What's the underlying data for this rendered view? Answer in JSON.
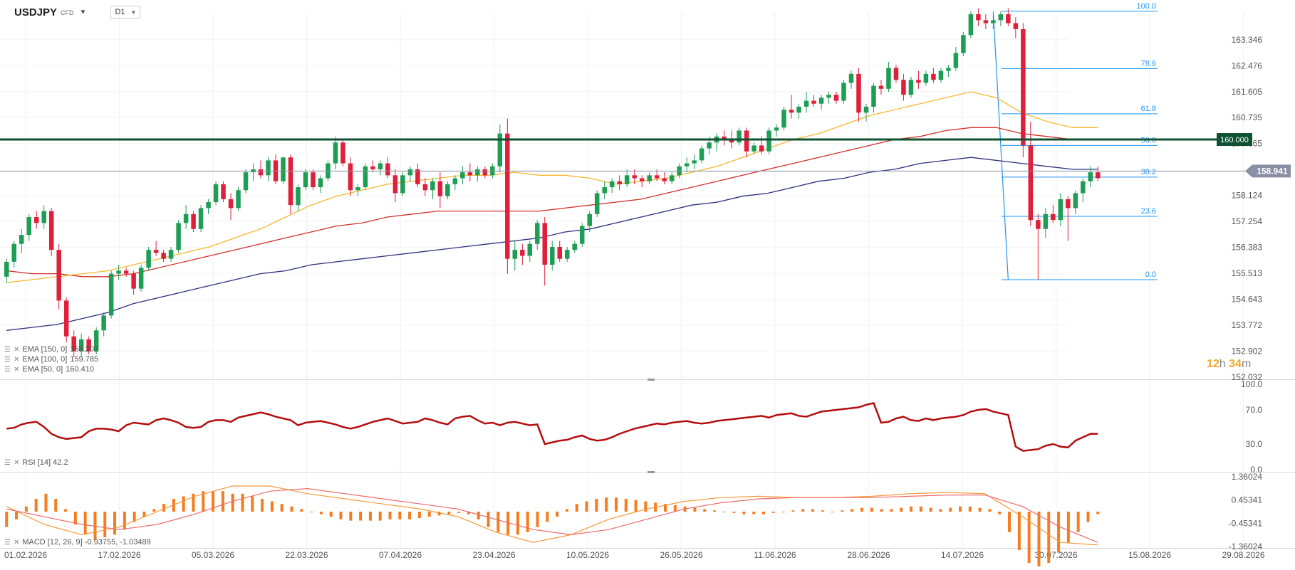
{
  "header": {
    "symbol": "USDJPY",
    "instrument_type": "CFD",
    "timeframe": "D1"
  },
  "indicators": {
    "ema150_label": "EMA [150, 0]",
    "ema150_value": "158.202",
    "ema100_label": "EMA [100, 0]",
    "ema100_value": "159.785",
    "ema50_label": "EMA [50, 0]",
    "ema50_value": "160.410",
    "rsi_label": "RSI [14] 42.2",
    "macd_label": "MACD [12, 26, 9] -0.93755, -1.03489"
  },
  "countdown": {
    "hours": "12",
    "h_unit": "h",
    "minutes": "34",
    "m_unit": "m"
  },
  "colors": {
    "bull": "#1e9e55",
    "bear": "#e0203a",
    "ema50": "#f7b731",
    "ema100": "#d0312d",
    "ema150": "#2b2f7d",
    "rsi": "#b40d0d",
    "fib": "#2196f3",
    "level": "#0f5132",
    "macd_hist": "#f57c1f",
    "macd_line": "#f49a3a",
    "signal_line": "#f06a6a",
    "axis_text": "#555555"
  },
  "chart_data": {
    "type": "candlestick",
    "price_axis": {
      "min": 152.032,
      "max": 164.2,
      "ticks": [
        "163.346",
        "162.476",
        "161.605",
        "160.735",
        "159.865",
        "159.001",
        "158.124",
        "157.254",
        "156.383",
        "155.513",
        "154.643",
        "153.772",
        "152.902",
        "152.032"
      ]
    },
    "x_axis_labels": [
      "01.02.2026",
      "17.02.2026",
      "05.03.2026",
      "22.03.2026",
      "07.04.2026",
      "23.04.2026",
      "10.05.2026",
      "26.05.2026",
      "11.06.2026",
      "28.06.2026",
      "14.07.2026",
      "30.07.2026",
      "15.08.2026",
      "29.08.2026"
    ],
    "current_price": "158.941",
    "level_line": {
      "value": 160.0,
      "label": "160.000"
    },
    "fibonacci": {
      "high": 164.3,
      "low": 155.3,
      "levels": [
        {
          "ratio": 1.0,
          "label": "100.0"
        },
        {
          "ratio": 0.786,
          "label": "78.6"
        },
        {
          "ratio": 0.618,
          "label": "61.8"
        },
        {
          "ratio": 0.5,
          "label": "50.0"
        },
        {
          "ratio": 0.382,
          "label": "38.2"
        },
        {
          "ratio": 0.236,
          "label": "23.6"
        },
        {
          "ratio": 0.0,
          "label": "0.0"
        }
      ]
    },
    "ohlc": [
      [
        155.4,
        156.0,
        155.2,
        155.9
      ],
      [
        155.9,
        156.6,
        155.7,
        156.5
      ],
      [
        156.5,
        157.0,
        156.2,
        156.8
      ],
      [
        156.8,
        157.5,
        156.6,
        157.4
      ],
      [
        157.4,
        157.6,
        157.0,
        157.2
      ],
      [
        157.2,
        157.8,
        157.0,
        157.6
      ],
      [
        157.6,
        157.7,
        156.1,
        156.3
      ],
      [
        156.3,
        156.5,
        154.3,
        154.6
      ],
      [
        154.6,
        154.7,
        153.2,
        153.4
      ],
      [
        153.4,
        153.6,
        152.7,
        152.9
      ],
      [
        152.9,
        153.5,
        152.7,
        153.3
      ],
      [
        153.3,
        153.4,
        152.8,
        152.9
      ],
      [
        152.9,
        153.7,
        152.8,
        153.6
      ],
      [
        153.6,
        154.2,
        153.4,
        154.1
      ],
      [
        154.1,
        155.6,
        154.0,
        155.5
      ],
      [
        155.5,
        155.8,
        155.3,
        155.6
      ],
      [
        155.6,
        155.7,
        155.4,
        155.5
      ],
      [
        155.5,
        155.6,
        154.8,
        155.0
      ],
      [
        155.0,
        155.8,
        154.9,
        155.7
      ],
      [
        155.7,
        156.4,
        155.6,
        156.3
      ],
      [
        156.3,
        156.6,
        156.1,
        156.2
      ],
      [
        156.2,
        156.3,
        155.9,
        156.0
      ],
      [
        156.0,
        156.4,
        155.9,
        156.3
      ],
      [
        156.3,
        157.3,
        156.2,
        157.2
      ],
      [
        157.2,
        157.8,
        157.0,
        157.5
      ],
      [
        157.5,
        157.6,
        156.9,
        157.0
      ],
      [
        157.0,
        157.8,
        156.9,
        157.7
      ],
      [
        157.7,
        158.0,
        157.5,
        157.9
      ],
      [
        157.9,
        158.6,
        157.8,
        158.5
      ],
      [
        158.5,
        158.6,
        157.9,
        158.0
      ],
      [
        158.0,
        158.2,
        157.3,
        157.7
      ],
      [
        157.7,
        158.4,
        157.6,
        158.3
      ],
      [
        158.3,
        159.0,
        158.2,
        158.9
      ],
      [
        158.9,
        159.2,
        158.6,
        159.0
      ],
      [
        159.0,
        159.3,
        158.7,
        158.8
      ],
      [
        158.8,
        159.4,
        158.6,
        159.3
      ],
      [
        159.3,
        159.5,
        158.5,
        158.6
      ],
      [
        158.6,
        159.4,
        158.5,
        159.4
      ],
      [
        159.4,
        159.5,
        157.5,
        157.8
      ],
      [
        157.8,
        158.5,
        157.6,
        158.4
      ],
      [
        158.4,
        159.0,
        158.3,
        158.9
      ],
      [
        158.9,
        159.0,
        158.3,
        158.4
      ],
      [
        158.4,
        158.8,
        158.2,
        158.7
      ],
      [
        158.7,
        159.3,
        158.6,
        159.2
      ],
      [
        159.2,
        160.1,
        159.0,
        159.9
      ],
      [
        159.9,
        160.0,
        159.1,
        159.2
      ],
      [
        159.2,
        159.4,
        158.1,
        158.3
      ],
      [
        158.3,
        158.5,
        158.1,
        158.4
      ],
      [
        158.4,
        159.2,
        158.3,
        159.1
      ],
      [
        159.1,
        159.3,
        158.9,
        159.0
      ],
      [
        159.0,
        159.3,
        158.8,
        159.2
      ],
      [
        159.2,
        159.4,
        158.7,
        158.8
      ],
      [
        158.8,
        159.0,
        157.9,
        158.2
      ],
      [
        158.2,
        158.9,
        158.1,
        158.8
      ],
      [
        158.8,
        159.1,
        158.6,
        159.0
      ],
      [
        159.0,
        159.2,
        158.4,
        158.5
      ],
      [
        158.5,
        158.7,
        158.1,
        158.3
      ],
      [
        158.3,
        158.7,
        158.0,
        158.6
      ],
      [
        158.6,
        158.9,
        157.7,
        158.1
      ],
      [
        158.1,
        158.6,
        158.0,
        158.5
      ],
      [
        158.5,
        158.8,
        158.3,
        158.7
      ],
      [
        158.7,
        159.1,
        158.5,
        158.9
      ],
      [
        158.9,
        159.2,
        158.6,
        158.8
      ],
      [
        158.8,
        159.1,
        158.6,
        159.0
      ],
      [
        159.0,
        159.1,
        158.7,
        158.8
      ],
      [
        158.8,
        159.2,
        158.7,
        159.1
      ],
      [
        159.1,
        160.5,
        158.9,
        160.2
      ],
      [
        160.2,
        160.7,
        155.5,
        156.0
      ],
      [
        156.0,
        156.6,
        155.6,
        156.3
      ],
      [
        156.3,
        156.5,
        155.8,
        156.1
      ],
      [
        156.1,
        156.6,
        155.9,
        156.5
      ],
      [
        156.5,
        157.3,
        156.3,
        157.2
      ],
      [
        157.2,
        157.4,
        155.1,
        155.8
      ],
      [
        155.8,
        156.6,
        155.6,
        156.4
      ],
      [
        156.4,
        156.6,
        155.9,
        156.0
      ],
      [
        156.0,
        156.4,
        155.9,
        156.3
      ],
      [
        156.3,
        156.6,
        156.2,
        156.5
      ],
      [
        156.5,
        157.2,
        156.4,
        157.1
      ],
      [
        157.1,
        157.6,
        156.9,
        157.5
      ],
      [
        157.5,
        158.3,
        157.4,
        158.2
      ],
      [
        158.2,
        158.6,
        158.0,
        158.4
      ],
      [
        158.4,
        158.7,
        158.2,
        158.6
      ],
      [
        158.6,
        158.8,
        158.3,
        158.5
      ],
      [
        158.5,
        159.0,
        158.4,
        158.8
      ],
      [
        158.8,
        159.0,
        158.5,
        158.7
      ],
      [
        158.7,
        158.8,
        158.4,
        158.6
      ],
      [
        158.6,
        158.9,
        158.5,
        158.8
      ],
      [
        158.8,
        159.0,
        158.6,
        158.7
      ],
      [
        158.7,
        158.9,
        158.5,
        158.6
      ],
      [
        158.6,
        158.9,
        158.5,
        158.8
      ],
      [
        158.8,
        159.2,
        158.7,
        159.1
      ],
      [
        159.1,
        159.4,
        158.9,
        159.2
      ],
      [
        159.2,
        159.5,
        159.0,
        159.3
      ],
      [
        159.3,
        159.8,
        159.2,
        159.7
      ],
      [
        159.7,
        160.1,
        159.5,
        159.9
      ],
      [
        159.9,
        160.2,
        159.6,
        160.1
      ],
      [
        160.1,
        160.3,
        159.8,
        160.0
      ],
      [
        160.0,
        160.3,
        159.7,
        159.9
      ],
      [
        159.9,
        160.4,
        159.8,
        160.3
      ],
      [
        160.3,
        160.4,
        159.4,
        159.6
      ],
      [
        159.6,
        159.9,
        159.5,
        159.8
      ],
      [
        159.8,
        160.1,
        159.5,
        159.6
      ],
      [
        159.6,
        160.4,
        159.5,
        160.3
      ],
      [
        160.3,
        160.5,
        160.1,
        160.4
      ],
      [
        160.4,
        161.1,
        160.3,
        161.0
      ],
      [
        161.0,
        161.5,
        160.7,
        160.9
      ],
      [
        160.9,
        161.2,
        160.7,
        161.1
      ],
      [
        161.1,
        161.6,
        160.9,
        161.3
      ],
      [
        161.3,
        161.5,
        161.1,
        161.2
      ],
      [
        161.2,
        161.5,
        161.0,
        161.4
      ],
      [
        161.4,
        161.6,
        161.2,
        161.5
      ],
      [
        161.5,
        161.6,
        161.2,
        161.3
      ],
      [
        161.3,
        162.0,
        161.2,
        161.9
      ],
      [
        161.9,
        162.3,
        161.7,
        162.2
      ],
      [
        162.2,
        162.4,
        160.6,
        160.9
      ],
      [
        160.9,
        161.2,
        160.6,
        161.1
      ],
      [
        161.1,
        161.9,
        160.9,
        161.8
      ],
      [
        161.8,
        162.0,
        161.5,
        161.7
      ],
      [
        161.7,
        162.6,
        161.6,
        162.4
      ],
      [
        162.4,
        162.5,
        161.9,
        162.0
      ],
      [
        162.0,
        162.2,
        161.3,
        161.5
      ],
      [
        161.5,
        162.1,
        161.4,
        162.0
      ],
      [
        162.0,
        162.3,
        161.7,
        161.9
      ],
      [
        161.9,
        162.3,
        161.8,
        162.2
      ],
      [
        162.2,
        162.4,
        161.9,
        162.0
      ],
      [
        162.0,
        162.4,
        161.9,
        162.3
      ],
      [
        162.3,
        162.5,
        162.1,
        162.4
      ],
      [
        162.4,
        163.1,
        162.3,
        162.9
      ],
      [
        162.9,
        163.6,
        162.8,
        163.5
      ],
      [
        163.5,
        164.3,
        163.4,
        164.2
      ],
      [
        164.2,
        164.4,
        163.8,
        164.0
      ],
      [
        164.0,
        164.2,
        163.7,
        163.9
      ],
      [
        163.9,
        164.2,
        163.7,
        164.0
      ],
      [
        164.0,
        164.3,
        163.8,
        164.2
      ],
      [
        164.2,
        164.4,
        163.8,
        163.9
      ],
      [
        163.9,
        164.1,
        163.4,
        163.7
      ],
      [
        163.7,
        163.9,
        159.4,
        159.8
      ],
      [
        159.8,
        160.6,
        157.1,
        157.3
      ],
      [
        157.3,
        157.5,
        155.3,
        157.0
      ],
      [
        157.0,
        157.7,
        156.7,
        157.5
      ],
      [
        157.5,
        157.8,
        157.2,
        157.3
      ],
      [
        157.3,
        158.2,
        157.1,
        158.0
      ],
      [
        158.0,
        158.1,
        156.6,
        157.7
      ],
      [
        157.7,
        158.3,
        157.5,
        158.2
      ],
      [
        158.2,
        158.7,
        157.9,
        158.6
      ],
      [
        158.6,
        159.1,
        158.4,
        158.9
      ],
      [
        158.9,
        159.1,
        158.6,
        158.7
      ]
    ],
    "ema50": [
      155.2,
      155.3,
      155.4,
      155.5,
      155.6,
      155.8,
      156.0,
      156.2,
      156.4,
      156.7,
      157.0,
      157.4,
      157.8,
      158.1,
      158.3,
      158.5,
      158.6,
      158.7,
      158.8,
      158.8,
      158.9,
      158.8,
      158.8,
      158.7,
      158.5,
      158.6,
      158.7,
      158.9,
      159.1,
      159.4,
      159.7,
      160.0,
      160.2,
      160.5,
      160.8,
      161.0,
      161.2,
      161.4,
      161.6,
      161.4,
      160.9,
      160.6,
      160.4,
      160.4
    ],
    "ema100": [
      155.6,
      155.5,
      155.5,
      155.4,
      155.4,
      155.5,
      155.7,
      155.9,
      156.1,
      156.3,
      156.5,
      156.7,
      156.9,
      157.1,
      157.2,
      157.4,
      157.5,
      157.6,
      157.6,
      157.6,
      157.6,
      157.6,
      157.7,
      157.8,
      157.9,
      158.0,
      158.2,
      158.4,
      158.6,
      158.8,
      159.0,
      159.2,
      159.4,
      159.6,
      159.8,
      160.0,
      160.1,
      160.3,
      160.4,
      160.4,
      160.2,
      160.1,
      160.0,
      160.0
    ],
    "ema150": [
      153.6,
      153.7,
      153.8,
      154.0,
      154.2,
      154.5,
      154.7,
      154.9,
      155.1,
      155.3,
      155.5,
      155.6,
      155.8,
      155.9,
      156.0,
      156.1,
      156.2,
      156.3,
      156.4,
      156.5,
      156.6,
      156.7,
      156.9,
      157.0,
      157.2,
      157.4,
      157.6,
      157.8,
      157.9,
      158.1,
      158.2,
      158.4,
      158.6,
      158.7,
      158.9,
      159.0,
      159.2,
      159.3,
      159.4,
      159.3,
      159.2,
      159.1,
      159.0,
      159.0
    ],
    "rsi": [
      48,
      49,
      53,
      55,
      56,
      50,
      42,
      38,
      36,
      37,
      38,
      45,
      48,
      48,
      47,
      45,
      52,
      55,
      54,
      53,
      58,
      60,
      58,
      55,
      50,
      49,
      50,
      56,
      58,
      58,
      56,
      61,
      63,
      65,
      67,
      65,
      62,
      60,
      58,
      52,
      55,
      56,
      57,
      55,
      53,
      50,
      48,
      50,
      53,
      56,
      58,
      60,
      57,
      54,
      55,
      56,
      60,
      58,
      55,
      53,
      60,
      62,
      63,
      58,
      54,
      55,
      52,
      55,
      56,
      54,
      52,
      53,
      30,
      32,
      34,
      35,
      38,
      40,
      36,
      34,
      35,
      38,
      42,
      45,
      48,
      50,
      52,
      54,
      53,
      55,
      56,
      57,
      55,
      54,
      55,
      57,
      58,
      59,
      60,
      61,
      62,
      63,
      61,
      64,
      65,
      66,
      63,
      62,
      65,
      68,
      69,
      70,
      71,
      72,
      73,
      76,
      78,
      55,
      56,
      60,
      62,
      58,
      57,
      60,
      58,
      60,
      61,
      62,
      64,
      68,
      70,
      71,
      68,
      66,
      64,
      27,
      22,
      23,
      24,
      28,
      30,
      27,
      26,
      34,
      38,
      42,
      42
    ],
    "macd_hist": [
      -0.6,
      -0.3,
      0.2,
      0.5,
      0.7,
      0.5,
      0.1,
      -0.5,
      -0.9,
      -1.1,
      -1.0,
      -0.9,
      -0.7,
      -0.4,
      -0.2,
      0.1,
      0.3,
      0.5,
      0.6,
      0.7,
      0.8,
      0.8,
      0.8,
      0.7,
      0.7,
      0.6,
      0.5,
      0.4,
      0.3,
      0.2,
      0.1,
      0.0,
      -0.1,
      -0.2,
      -0.3,
      -0.35,
      -0.35,
      -0.35,
      -0.35,
      -0.3,
      -0.3,
      -0.3,
      -0.25,
      -0.2,
      -0.15,
      -0.1,
      -0.05,
      -0.1,
      -0.3,
      -0.6,
      -0.8,
      -0.9,
      -0.9,
      -0.8,
      -0.6,
      -0.4,
      -0.2,
      0.1,
      0.3,
      0.4,
      0.5,
      0.55,
      0.55,
      0.5,
      0.45,
      0.4,
      0.35,
      0.3,
      0.25,
      0.2,
      0.15,
      0.1,
      0.05,
      0.0,
      -0.05,
      -0.1,
      -0.1,
      -0.1,
      -0.05,
      0.0,
      0.05,
      0.1,
      0.1,
      0.05,
      0.0,
      0.05,
      0.1,
      0.15,
      0.15,
      0.1,
      0.1,
      0.15,
      0.2,
      0.2,
      0.15,
      0.1,
      0.15,
      0.2,
      0.2,
      0.15,
      0.1,
      -0.1,
      -0.8,
      -1.5,
      -2.0,
      -2.2,
      -2.0,
      -1.6,
      -1.2,
      -0.8,
      -0.4,
      -0.1
    ],
    "macd_line": [
      0.2,
      -0.5,
      -0.9,
      -0.6,
      0.0,
      0.6,
      1.0,
      1.0,
      0.7,
      0.5,
      0.3,
      0.1,
      -0.2,
      -0.8,
      -1.2,
      -0.9,
      -0.3,
      0.1,
      0.4,
      0.55,
      0.6,
      0.55,
      0.55,
      0.6,
      0.7,
      0.75,
      0.7,
      -0.2,
      -1.2,
      -1.3
    ],
    "signal_line": [
      0.1,
      -0.2,
      -0.5,
      -0.7,
      -0.5,
      -0.1,
      0.4,
      0.8,
      0.9,
      0.7,
      0.5,
      0.3,
      0.1,
      -0.3,
      -0.7,
      -0.9,
      -0.7,
      -0.3,
      0.1,
      0.35,
      0.5,
      0.55,
      0.55,
      0.55,
      0.6,
      0.65,
      0.65,
      0.2,
      -0.6,
      -1.2
    ]
  }
}
